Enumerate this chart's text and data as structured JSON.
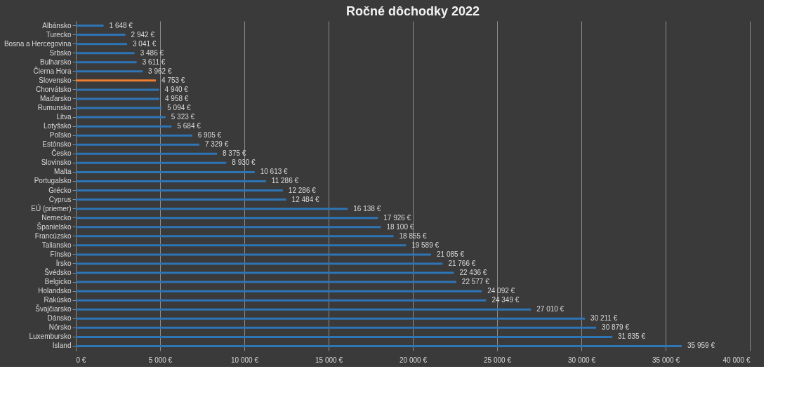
{
  "chart_data": {
    "type": "bar",
    "orientation": "horizontal",
    "title": "Ročné dôchodky 2022",
    "categories": [
      "Albánsko",
      "Turecko",
      "Bosna a Hercegovina",
      "Srbsko",
      "Bulharsko",
      "Čierna Hora",
      "Slovensko",
      "Chorvátsko",
      "Maďarsko",
      "Rumunsko",
      "Litva",
      "Lotyšsko",
      "Poľsko",
      "Estónsko",
      "Česko",
      "Slovinsko",
      "Malta",
      "Portugalsko",
      "Grécko",
      "Cyprus",
      "EÚ (priemer)",
      "Nemecko",
      "Španielsko",
      "Francúzsko",
      "Taliansko",
      "Fínsko",
      "Írsko",
      "Švédsko",
      "Belgicko",
      "Holandsko",
      "Rakúsko",
      "Švajčiarsko",
      "Dánsko",
      "Nórsko",
      "Luxembursko",
      "Island"
    ],
    "values": [
      1648,
      2942,
      3041,
      3486,
      3611,
      3962,
      4753,
      4940,
      4958,
      5094,
      5323,
      5684,
      6905,
      7329,
      8375,
      8930,
      10613,
      11286,
      12286,
      12484,
      16138,
      17926,
      18100,
      18855,
      19589,
      21085,
      21766,
      22436,
      22577,
      24092,
      24349,
      27010,
      30211,
      30879,
      31835,
      35959
    ],
    "value_labels": [
      "1 648 €",
      "2 942 €",
      "3 041 €",
      "3 486 €",
      "3 611 €",
      "3 962 €",
      "4 753 €",
      "4 940 €",
      "4 958 €",
      "5 094 €",
      "5 323 €",
      "5 684 €",
      "6 905 €",
      "7 329 €",
      "8 375 €",
      "8 930 €",
      "10 613 €",
      "11 286 €",
      "12 286 €",
      "12 484 €",
      "16 138 €",
      "17 926 €",
      "18 100 €",
      "18 855 €",
      "19 589 €",
      "21 085 €",
      "21 766 €",
      "22 436 €",
      "22 577 €",
      "24 092 €",
      "24 349 €",
      "27 010 €",
      "30 211 €",
      "30 879 €",
      "31 835 €",
      "35 959 €"
    ],
    "colors": [
      "#2e75b6",
      "#2e75b6",
      "#2e75b6",
      "#2e75b6",
      "#2e75b6",
      "#2e75b6",
      "#ed7d31",
      "#2e75b6",
      "#2e75b6",
      "#2e75b6",
      "#2e75b6",
      "#2e75b6",
      "#2e75b6",
      "#2e75b6",
      "#2e75b6",
      "#2e75b6",
      "#2e75b6",
      "#2e75b6",
      "#2e75b6",
      "#2e75b6",
      "#2e75b6",
      "#2e75b6",
      "#2e75b6",
      "#2e75b6",
      "#2e75b6",
      "#2e75b6",
      "#2e75b6",
      "#2e75b6",
      "#2e75b6",
      "#2e75b6",
      "#2e75b6",
      "#2e75b6",
      "#2e75b6",
      "#2e75b6",
      "#2e75b6",
      "#2e75b6"
    ],
    "xlim": [
      0,
      40000
    ],
    "xticks": [
      {
        "value": 0,
        "label": "0 €"
      },
      {
        "value": 5000,
        "label": "5 000 €"
      },
      {
        "value": 10000,
        "label": "10 000 €"
      },
      {
        "value": 15000,
        "label": "15 000 €"
      },
      {
        "value": 20000,
        "label": "20 000 €"
      },
      {
        "value": 25000,
        "label": "25 000 €"
      },
      {
        "value": 30000,
        "label": "30 000 €"
      },
      {
        "value": 35000,
        "label": "35 000 €"
      },
      {
        "value": 40000,
        "label": "40 000 €"
      }
    ],
    "grid": "x"
  }
}
